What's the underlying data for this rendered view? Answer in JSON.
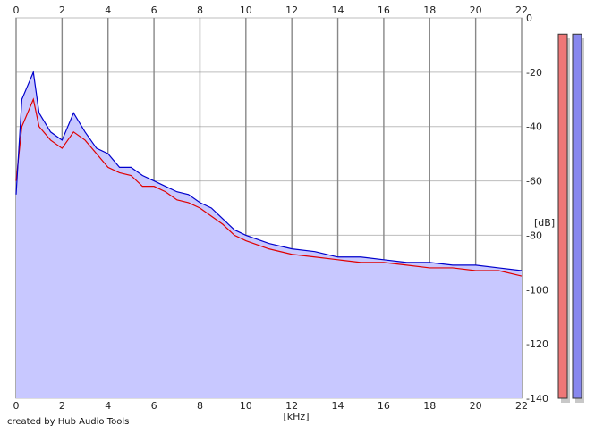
{
  "chart_data": {
    "type": "area",
    "xlabel": "[kHz]",
    "ylabel": "[dB]",
    "x_range": [
      0,
      22
    ],
    "y_range": [
      -140,
      0
    ],
    "x_ticks": [
      "0",
      "2",
      "4",
      "6",
      "8",
      "10",
      "12",
      "14",
      "16",
      "18",
      "20",
      "22"
    ],
    "y_ticks": [
      "0",
      "-20",
      "-40",
      "-60",
      "-80",
      "-100",
      "-120",
      "-140"
    ],
    "x_tick_values": [
      0,
      2,
      4,
      6,
      8,
      10,
      12,
      14,
      16,
      18,
      20,
      22
    ],
    "y_tick_values": [
      0,
      -20,
      -40,
      -60,
      -80,
      -100,
      -120,
      -140
    ],
    "grid": true,
    "fill_color": "#c8c8ff",
    "series": [
      {
        "color": "#e00000",
        "x": [
          0,
          0.25,
          0.5,
          0.75,
          1,
          1.5,
          2,
          2.5,
          3,
          3.5,
          4,
          4.5,
          5,
          5.5,
          6,
          6.5,
          7,
          7.5,
          8,
          8.5,
          9,
          9.5,
          10,
          11,
          12,
          13,
          14,
          15,
          16,
          17,
          18,
          19,
          20,
          21,
          22
        ],
        "values": [
          -60,
          -40,
          -35,
          -30,
          -40,
          -45,
          -48,
          -42,
          -45,
          -50,
          -55,
          -57,
          -58,
          -62,
          -62,
          -64,
          -67,
          -68,
          -70,
          -73,
          -76,
          -80,
          -82,
          -85,
          -87,
          -88,
          -89,
          -90,
          -90,
          -91,
          -92,
          -92,
          -93,
          -93,
          -95
        ]
      },
      {
        "color": "#0000cc",
        "x": [
          0,
          0.25,
          0.5,
          0.75,
          1,
          1.5,
          2,
          2.5,
          3,
          3.5,
          4,
          4.5,
          5,
          5.5,
          6,
          6.5,
          7,
          7.5,
          8,
          8.5,
          9,
          9.5,
          10,
          11,
          12,
          13,
          14,
          15,
          16,
          17,
          18,
          19,
          20,
          21,
          22
        ],
        "values": [
          -65,
          -30,
          -25,
          -20,
          -35,
          -42,
          -45,
          -35,
          -42,
          -48,
          -50,
          -55,
          -55,
          -58,
          -60,
          -62,
          -64,
          -65,
          -68,
          -70,
          -74,
          -78,
          -80,
          -83,
          -85,
          -86,
          -88,
          -88,
          -89,
          -90,
          -90,
          -91,
          -91,
          -92,
          -93
        ]
      }
    ],
    "level_meters": [
      {
        "color": "#ee7777",
        "value_db": -6
      },
      {
        "color": "#8888ee",
        "value_db": -6
      }
    ]
  },
  "credit_text": "created by Hub Audio Tools"
}
